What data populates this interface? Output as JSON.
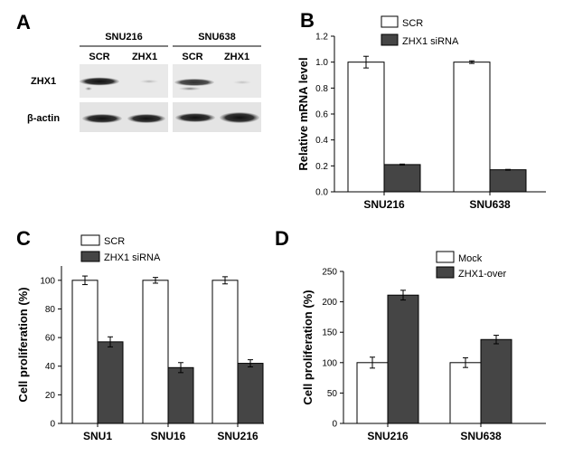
{
  "panels": {
    "a": "A",
    "b": "B",
    "c": "C",
    "d": "D"
  },
  "blot": {
    "groups": [
      "SNU216",
      "SNU638"
    ],
    "lanes": [
      "SCR",
      "ZHX1",
      "SCR",
      "ZHX1"
    ],
    "rows": [
      "ZHX1",
      "β-actin"
    ]
  },
  "colors": {
    "scr": "#ffffff",
    "treated": "#454545"
  },
  "chart_data": [
    {
      "type": "bar",
      "panel": "B",
      "categories": [
        "SNU216",
        "SNU638"
      ],
      "series": [
        {
          "name": "SCR",
          "values": [
            1.0,
            1.0
          ],
          "errors": [
            0.045,
            0.01
          ]
        },
        {
          "name": "ZHX1 siRNA",
          "values": [
            0.21,
            0.17
          ],
          "errors": [
            0.004,
            0.003
          ]
        }
      ],
      "xlabel": "",
      "ylabel": "Relative mRNA level",
      "ylim": [
        0,
        1.2
      ],
      "yticks": [
        "0.0",
        "0.2",
        "0.4",
        "0.6",
        "0.8",
        "1.0",
        "1.2"
      ],
      "legend": "top"
    },
    {
      "type": "bar",
      "panel": "C",
      "categories": [
        "SNU1",
        "SNU16",
        "SNU216"
      ],
      "series": [
        {
          "name": "SCR",
          "values": [
            100,
            100,
            100
          ],
          "errors": [
            3,
            2,
            2.5
          ]
        },
        {
          "name": "ZHX1 siRNA",
          "values": [
            57,
            39,
            42
          ],
          "errors": [
            3.5,
            3.5,
            2.5
          ]
        }
      ],
      "xlabel": "",
      "ylabel": "Cell proliferation (%)",
      "ylim": [
        0,
        110
      ],
      "yticks": [
        "0",
        "20",
        "40",
        "60",
        "80",
        "100"
      ],
      "legend": "top"
    },
    {
      "type": "bar",
      "panel": "D",
      "categories": [
        "SNU216",
        "SNU638"
      ],
      "series": [
        {
          "name": "Mock",
          "values": [
            100,
            100
          ],
          "errors": [
            9,
            8
          ]
        },
        {
          "name": "ZHX1-over",
          "values": [
            211,
            138
          ],
          "errors": [
            8,
            7
          ]
        }
      ],
      "xlabel": "",
      "ylabel": "Cell proliferation (%)",
      "ylim": [
        0,
        250
      ],
      "yticks": [
        "0",
        "50",
        "100",
        "150",
        "200",
        "250"
      ],
      "legend": "top-right"
    }
  ]
}
